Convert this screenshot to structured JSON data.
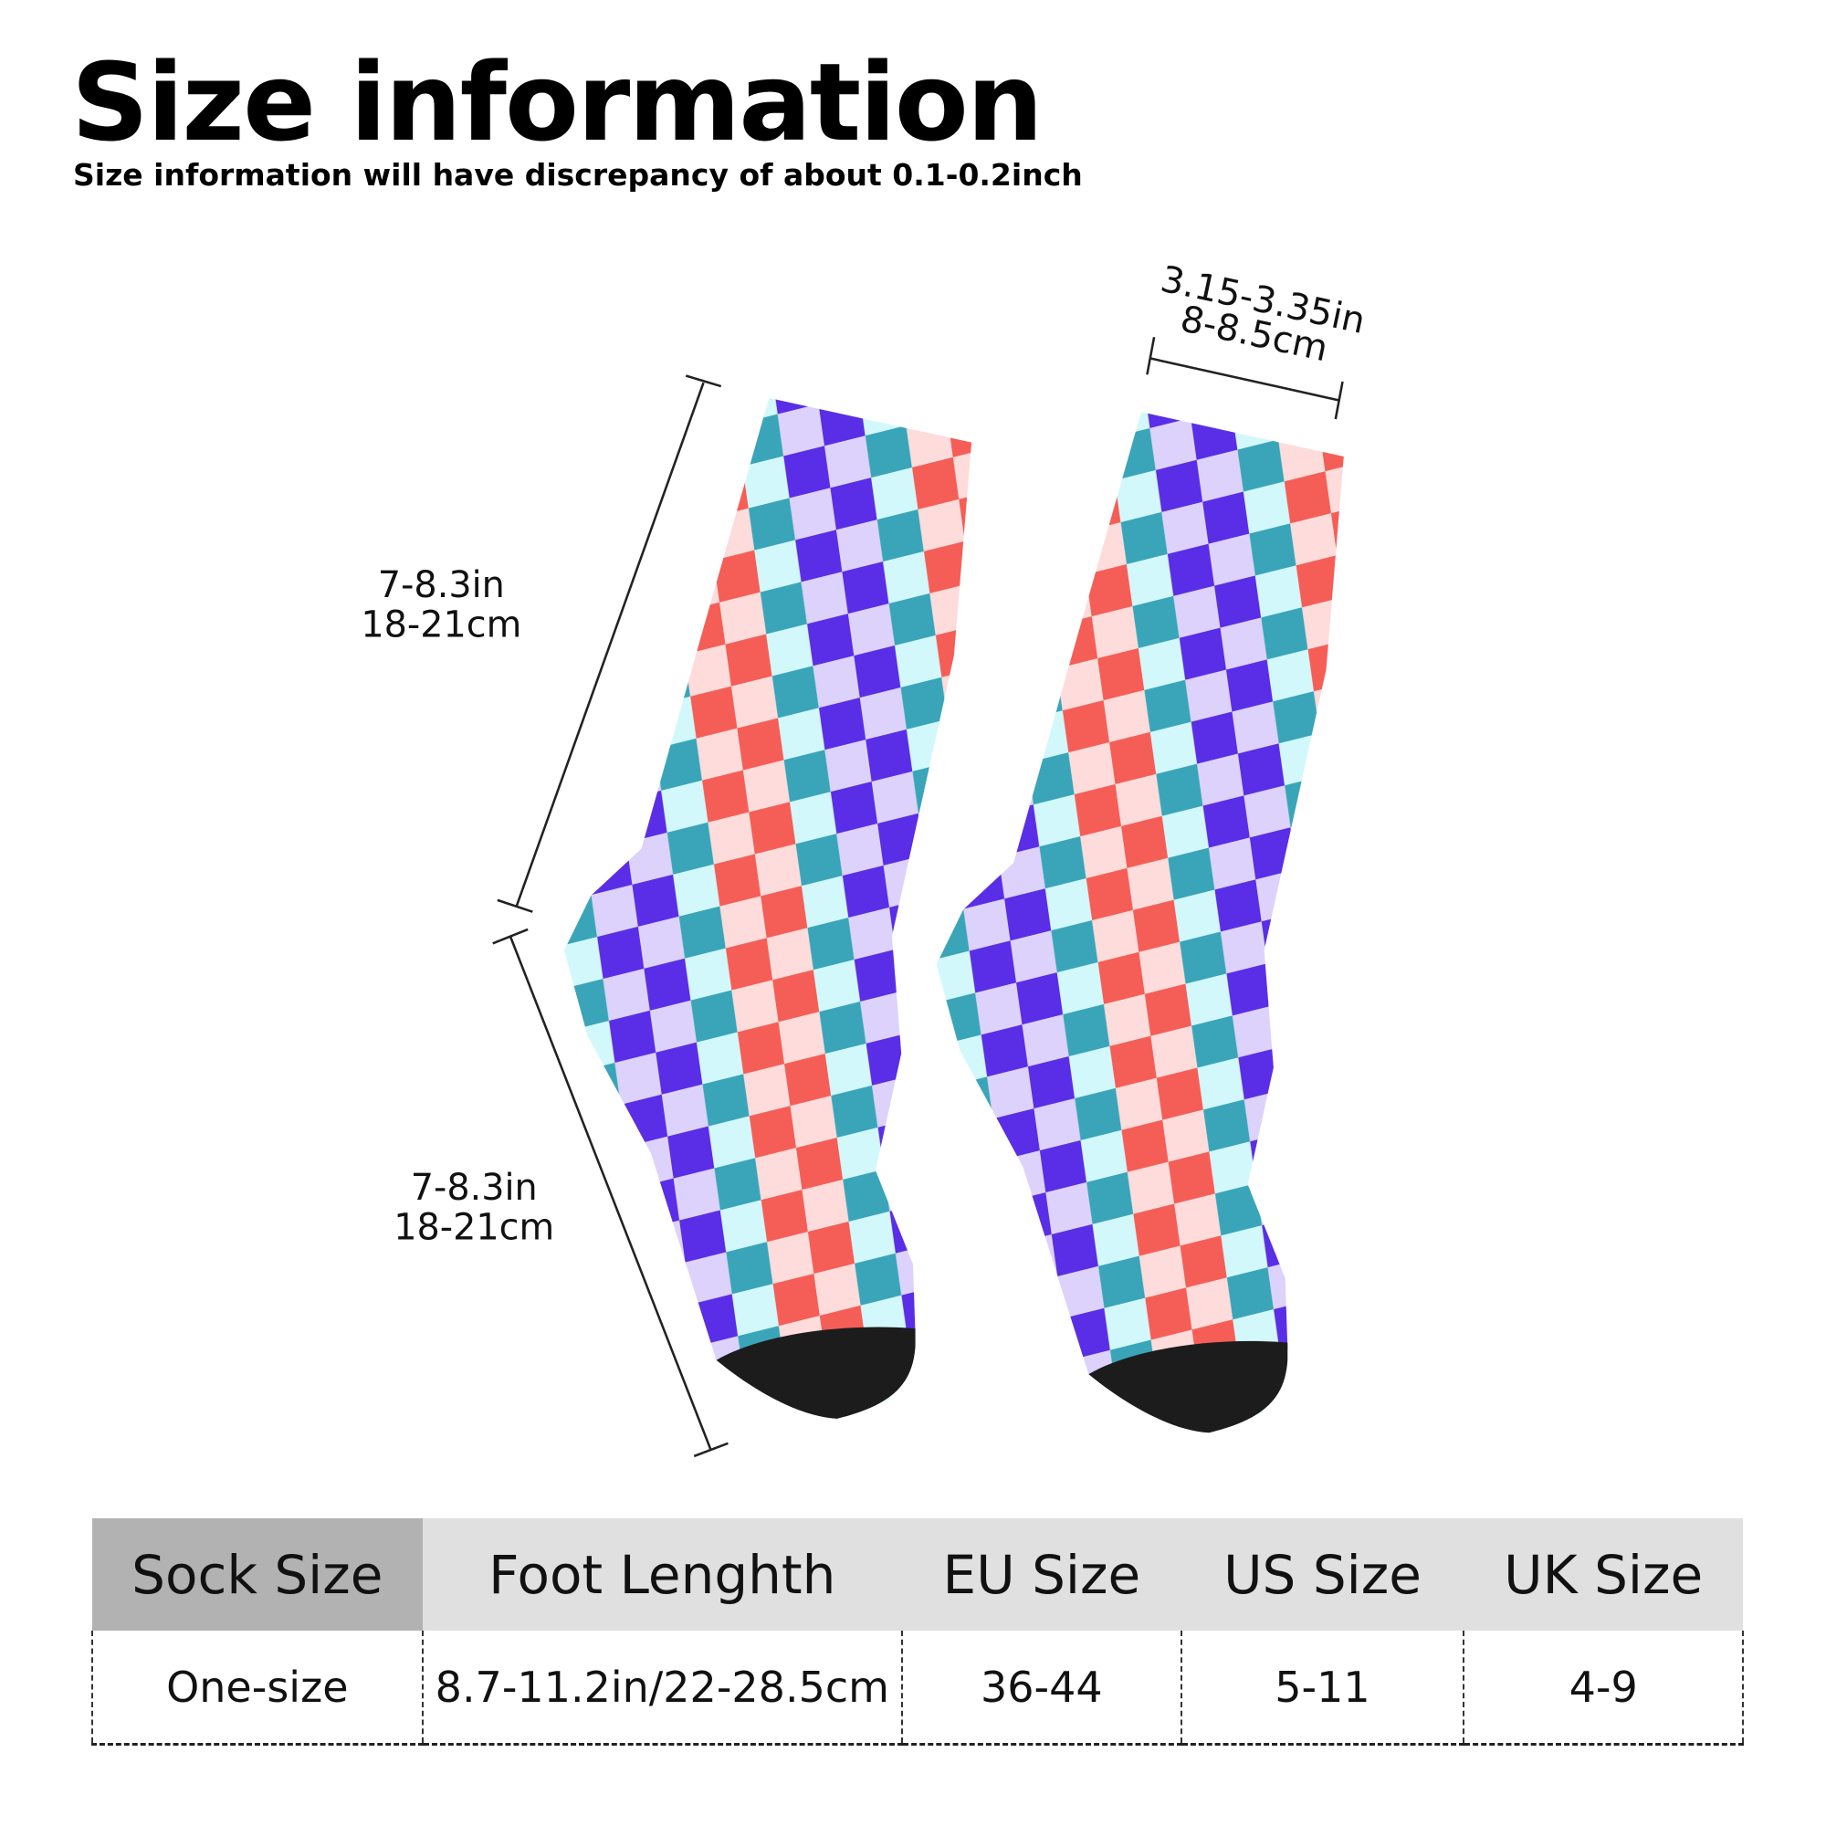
{
  "header": {
    "title": "Size information",
    "subtitle": "Size information will have discrepancy of about 0.1-0.2inch"
  },
  "dimensions": {
    "width_in": "3.15-3.35in",
    "width_cm": "8-8.5cm",
    "leg_in": "7-8.3in",
    "leg_cm": "18-21cm",
    "foot_in": "7-8.3in",
    "foot_cm": "18-21cm"
  },
  "colors": {
    "teal": "#3aa5b8",
    "light_cyan": "#d2f8fb",
    "purple": "#5a2ee6",
    "lavender": "#ddd2fb",
    "red": "#f55e57",
    "pink": "#fddcdb",
    "toe": "#1c1c1c"
  },
  "table": {
    "headers": [
      "Sock Size",
      "Foot Lenghth",
      "EU Size",
      "US Size",
      "UK Size"
    ],
    "rows": [
      [
        "One-size",
        "8.7-11.2in/22-28.5cm",
        "36-44",
        "5-11",
        "4-9"
      ]
    ]
  }
}
